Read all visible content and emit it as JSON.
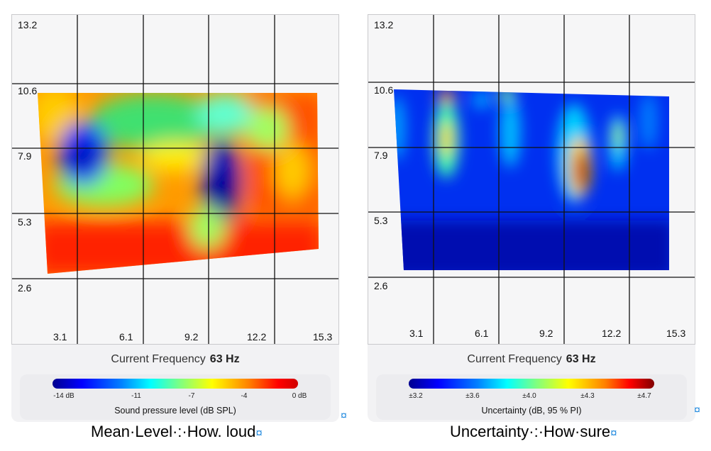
{
  "left_panel": {
    "y_ticks": [
      "13.2",
      "10.6",
      "7.9",
      "5.3",
      "2.6"
    ],
    "x_ticks": [
      "3.1",
      "6.1",
      "9.2",
      "12.2",
      "15.3"
    ],
    "frequency_label": "Current Frequency",
    "frequency_value": "63 Hz",
    "colorbar_ticks": [
      "-14 dB",
      "-11",
      "-7",
      "-4",
      "0 dB"
    ],
    "colorbar_label": "Sound pressure level (dB SPL)",
    "caption": "Mean·Level·:·How. loud",
    "colormap": [
      "#00008f",
      "#0000ff",
      "#00a0ff",
      "#00ffff",
      "#80ff80",
      "#ffff00",
      "#ff8000",
      "#ff0000"
    ]
  },
  "right_panel": {
    "y_ticks": [
      "13.2",
      "10.6",
      "7.9",
      "5.3",
      "2.6"
    ],
    "x_ticks": [
      "3.1",
      "6.1",
      "9.2",
      "12.2",
      "15.3"
    ],
    "frequency_label": "Current Frequency",
    "frequency_value": "63 Hz",
    "colorbar_ticks": [
      "±3.2",
      "±3.6",
      "±4.0",
      "±4.3",
      "±4.7"
    ],
    "colorbar_label": "Uncertainty (dB, 95 % PI)",
    "caption": "Uncertainty·:·How·sure",
    "colormap": [
      "#00008f",
      "#0000ff",
      "#00a0ff",
      "#00ffff",
      "#80ff80",
      "#ffff00",
      "#ff8000",
      "#ff0000",
      "#800000"
    ]
  },
  "marks": {
    "paragraph_mark": "¤"
  }
}
